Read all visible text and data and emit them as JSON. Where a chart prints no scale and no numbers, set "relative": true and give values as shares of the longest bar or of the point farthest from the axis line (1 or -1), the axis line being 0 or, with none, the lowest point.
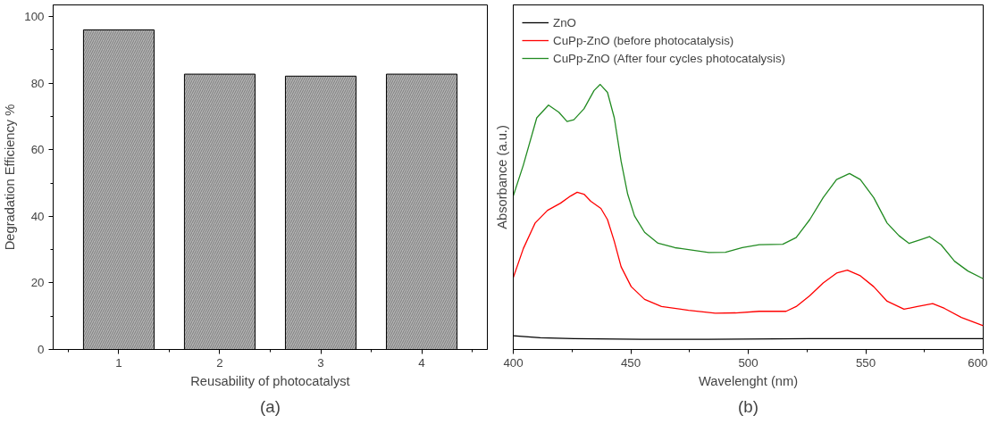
{
  "chart_data": [
    {
      "type": "bar",
      "xlabel": "Reusability of photocatalyst",
      "ylabel": "Degradation Efficiency %",
      "categories": [
        "1",
        "2",
        "3",
        "4"
      ],
      "values": [
        96,
        82.7,
        82.1,
        82.7
      ],
      "color": "#b4b4b4",
      "ylim": [
        0,
        103.5
      ],
      "yticks": [
        0,
        20,
        40,
        60,
        80,
        100
      ],
      "grid": false,
      "annotations": [
        "(a)"
      ]
    },
    {
      "type": "line",
      "relative": true,
      "xlabel": "Wavelenght (nm)",
      "ylabel": "Absorbance (a.u.)",
      "xlim": [
        400,
        600
      ],
      "xticks": [
        400,
        450,
        500,
        550,
        600
      ],
      "grid": false,
      "legend": "top",
      "annotations": [
        "(b)"
      ],
      "series": [
        {
          "name": "ZnO",
          "color": "#000000",
          "x": [
            400,
            411.5,
            425.8,
            454.5,
            483.2,
            526.2,
            600
          ],
          "values": [
            0.052,
            0.044,
            0.041,
            0.038,
            0.038,
            0.041,
            0.041
          ]
        },
        {
          "name": "CuPp-ZnO (before photocatalysis)",
          "color": "#ff0000",
          "x": [
            400,
            404.3,
            409.3,
            414.6,
            420.1,
            424.4,
            427.2,
            430.1,
            433.0,
            437.3,
            440.1,
            443.0,
            445.9,
            450.2,
            455.9,
            463.1,
            474.6,
            486.0,
            494.6,
            504.7,
            516.1,
            520.4,
            526.2,
            531.9,
            537.6,
            542.2,
            547.7,
            553.4,
            559.1,
            566.3,
            572.0,
            578.5,
            583.5,
            590.7,
            600
          ],
          "values": [
            0.271,
            0.381,
            0.477,
            0.525,
            0.552,
            0.579,
            0.593,
            0.586,
            0.559,
            0.532,
            0.49,
            0.408,
            0.312,
            0.237,
            0.189,
            0.162,
            0.148,
            0.137,
            0.138,
            0.144,
            0.144,
            0.162,
            0.203,
            0.251,
            0.288,
            0.299,
            0.278,
            0.237,
            0.182,
            0.152,
            0.162,
            0.173,
            0.155,
            0.121,
            0.09
          ]
        },
        {
          "name": "CuPp-ZnO (After four cycles photocatalysis)",
          "color": "#228b22",
          "x": [
            400,
            404.3,
            410.0,
            415.0,
            419.4,
            422.9,
            425.8,
            430.1,
            434.4,
            437.0,
            440.1,
            443.0,
            445.9,
            448.7,
            451.6,
            455.9,
            461.6,
            468.8,
            474.6,
            483.2,
            490.3,
            497.5,
            504.7,
            514.7,
            520.4,
            526.2,
            531.9,
            537.6,
            543.1,
            547.7,
            553.4,
            559.1,
            564.2,
            568.5,
            573.5,
            577.1,
            582.1,
            587.8,
            593.5,
            600
          ],
          "values": [
            0.579,
            0.696,
            0.874,
            0.922,
            0.895,
            0.86,
            0.867,
            0.908,
            0.977,
            1.0,
            0.97,
            0.874,
            0.71,
            0.586,
            0.504,
            0.442,
            0.401,
            0.384,
            0.377,
            0.366,
            0.367,
            0.384,
            0.395,
            0.397,
            0.422,
            0.49,
            0.573,
            0.641,
            0.664,
            0.641,
            0.573,
            0.477,
            0.429,
            0.4,
            0.415,
            0.426,
            0.395,
            0.333,
            0.296,
            0.267
          ]
        }
      ]
    }
  ]
}
